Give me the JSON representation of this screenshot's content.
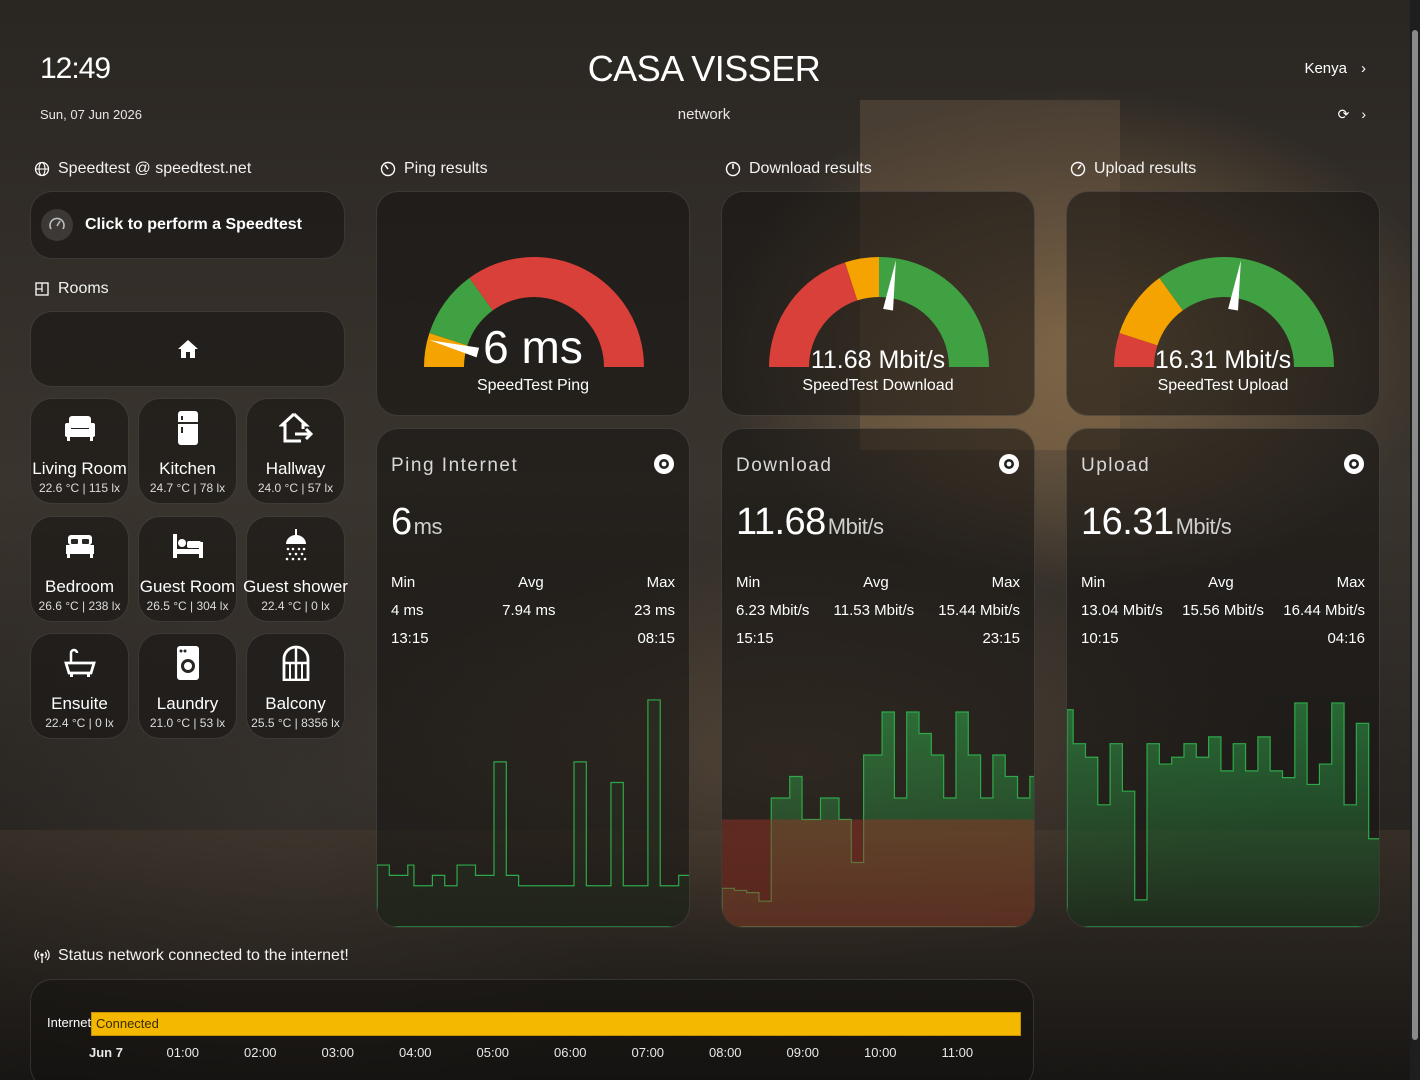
{
  "header": {
    "time": "12:49",
    "date": "Sun, 07 Jun 2026",
    "title": "CASA VISSER",
    "subtitle": "network",
    "user": "Kenya",
    "user_chevron": "›",
    "refresh_icon": "⟳",
    "refresh_chevron": "›"
  },
  "sections": {
    "speedtest": "Speedtest @ speedtest.net",
    "rooms": "Rooms",
    "ping": "Ping results",
    "download": "Download results",
    "upload": "Upload results",
    "status": "Status network connected to the internet!"
  },
  "speedtest_button": {
    "label": "Click to perform a Speedtest"
  },
  "rooms": [
    {
      "name": "Living Room",
      "stats": "22.6 °C | 115 lx",
      "icon": "sofa-icon"
    },
    {
      "name": "Kitchen",
      "stats": "24.7 °C | 78 lx",
      "icon": "fridge-icon"
    },
    {
      "name": "Hallway",
      "stats": "24.0 °C | 57 lx",
      "icon": "home-export-icon"
    },
    {
      "name": "Bedroom",
      "stats": "26.6 °C | 238 lx",
      "icon": "bed-icon"
    },
    {
      "name": "Guest Room",
      "stats": "26.5 °C | 304 lx",
      "icon": "bed-guest-icon"
    },
    {
      "name": "Guest shower",
      "stats": "22.4 °C | 0 lx",
      "icon": "shower-icon"
    },
    {
      "name": "Ensuite",
      "stats": "22.4 °C | 0 lx",
      "icon": "bathtub-icon"
    },
    {
      "name": "Laundry",
      "stats": "21.0 °C | 53 lx",
      "icon": "washing-machine-icon"
    },
    {
      "name": "Balcony",
      "stats": "25.5 °C | 8356 lx",
      "icon": "balcony-door-icon"
    }
  ],
  "gauges": {
    "ping": {
      "value_text": "6 ms",
      "name": "SpeedTest Ping",
      "value": 6,
      "min": 0,
      "max": 100,
      "segments": [
        {
          "to": 0.1,
          "color": "#f5a300"
        },
        {
          "to": 0.3,
          "color": "#3fa142"
        },
        {
          "to": 1.0,
          "color": "#d9403a"
        }
      ],
      "needle_fraction": 0.08
    },
    "download": {
      "value_text": "11.68 Mbit/s",
      "name": "SpeedTest Download",
      "segments": [
        {
          "to": 0.4,
          "color": "#d9403a"
        },
        {
          "to": 0.5,
          "color": "#f5a300"
        },
        {
          "to": 1.0,
          "color": "#3fa142"
        }
      ],
      "needle_fraction": 0.55
    },
    "upload": {
      "value_text": "16.31 Mbit/s",
      "name": "SpeedTest Upload",
      "segments": [
        {
          "to": 0.1,
          "color": "#d9403a"
        },
        {
          "to": 0.3,
          "color": "#f5a300"
        },
        {
          "to": 1.0,
          "color": "#3fa142"
        }
      ],
      "needle_fraction": 0.55
    }
  },
  "graphs": {
    "ping": {
      "title": "Ping Internet",
      "value": "6",
      "unit": "ms",
      "min_label": "Min",
      "avg_label": "Avg",
      "max_label": "Max",
      "min": "4 ms",
      "avg": "7.94 ms",
      "max": "23 ms",
      "min_time": "13:15",
      "max_time": "08:15",
      "line_color": "#2ea84a",
      "fill_color": "rgba(0,0,0,0)",
      "threshold_color": "rgba(0,0,0,0)",
      "ymax": 25,
      "values": [
        6,
        6,
        5,
        5,
        5,
        6,
        4,
        4,
        4,
        5,
        5,
        4,
        4,
        6,
        6,
        6,
        5,
        5,
        5,
        16,
        16,
        5,
        5,
        4,
        4,
        4,
        4,
        4,
        4,
        4,
        4,
        4,
        16,
        16,
        4,
        4,
        4,
        4,
        14,
        14,
        4,
        4,
        4,
        4,
        22,
        22,
        4,
        4,
        4,
        5,
        5,
        5
      ]
    },
    "download": {
      "title": "Download",
      "value": "11.68",
      "unit": "Mbit/s",
      "min_label": "Min",
      "avg_label": "Avg",
      "max_label": "Max",
      "min": "6.23 Mbit/s",
      "avg": "11.53 Mbit/s",
      "max": "15.44 Mbit/s",
      "min_time": "15:15",
      "max_time": "23:15",
      "line_color": "#2ea84a",
      "low_color": "#c0392b",
      "threshold": 10,
      "ymax": 17,
      "ymin": 5,
      "values": [
        6.8,
        6.8,
        6.7,
        6.7,
        6.6,
        6.6,
        6.2,
        6.2,
        11,
        11,
        11,
        12,
        12,
        10,
        10,
        10,
        11,
        11,
        11,
        10,
        10,
        8,
        8,
        13,
        13,
        13,
        15,
        15,
        11,
        11,
        15,
        15,
        14,
        14,
        13,
        13,
        11,
        11,
        15,
        15,
        13,
        13,
        11,
        11,
        13,
        13,
        12,
        12,
        11,
        11,
        12,
        12
      ]
    },
    "upload": {
      "title": "Upload",
      "value": "16.31",
      "unit": "Mbit/s",
      "min_label": "Min",
      "avg_label": "Avg",
      "max_label": "Max",
      "min": "13.04 Mbit/s",
      "avg": "15.56 Mbit/s",
      "max": "16.44 Mbit/s",
      "min_time": "10:15",
      "max_time": "04:16",
      "line_color": "#2ea84a",
      "ymax": 16.6,
      "ymin": 12.8,
      "values": [
        16.0,
        15.5,
        15.5,
        15.3,
        15.3,
        14.6,
        14.6,
        15.5,
        15.5,
        14.8,
        14.8,
        13.2,
        13.2,
        15.5,
        15.5,
        15.2,
        15.2,
        15.3,
        15.3,
        15.5,
        15.5,
        15.3,
        15.3,
        15.6,
        15.6,
        15.1,
        15.1,
        15.5,
        15.5,
        15.1,
        15.1,
        15.6,
        15.6,
        15.1,
        15.1,
        15.0,
        15.0,
        16.1,
        16.1,
        14.9,
        14.9,
        15.2,
        15.2,
        16.1,
        16.1,
        14.6,
        14.6,
        15.8,
        15.8,
        14.1,
        14.1,
        15.9
      ]
    }
  },
  "timeline": {
    "label": "Internet",
    "state": "Connected",
    "state_color": "#f5b800",
    "ticks": [
      "Jun 7",
      "01:00",
      "02:00",
      "03:00",
      "04:00",
      "05:00",
      "06:00",
      "07:00",
      "08:00",
      "09:00",
      "10:00",
      "11:00"
    ]
  }
}
